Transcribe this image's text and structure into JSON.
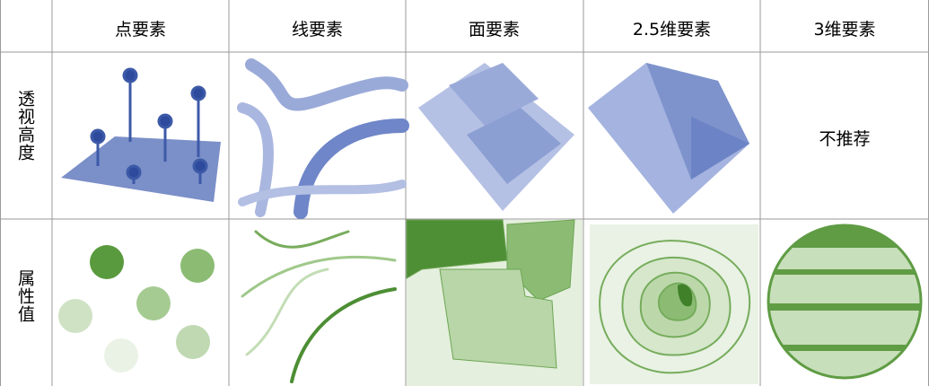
{
  "table": {
    "header": [
      "点要素",
      "线要素",
      "面要素",
      "2.5维要素",
      "3维要素"
    ],
    "rows": [
      {
        "label": "透视高度",
        "cells": [
          "",
          "",
          "",
          "",
          "不推荐"
        ]
      },
      {
        "label": "属性值",
        "cells": [
          "",
          "",
          "",
          "",
          ""
        ]
      }
    ]
  }
}
